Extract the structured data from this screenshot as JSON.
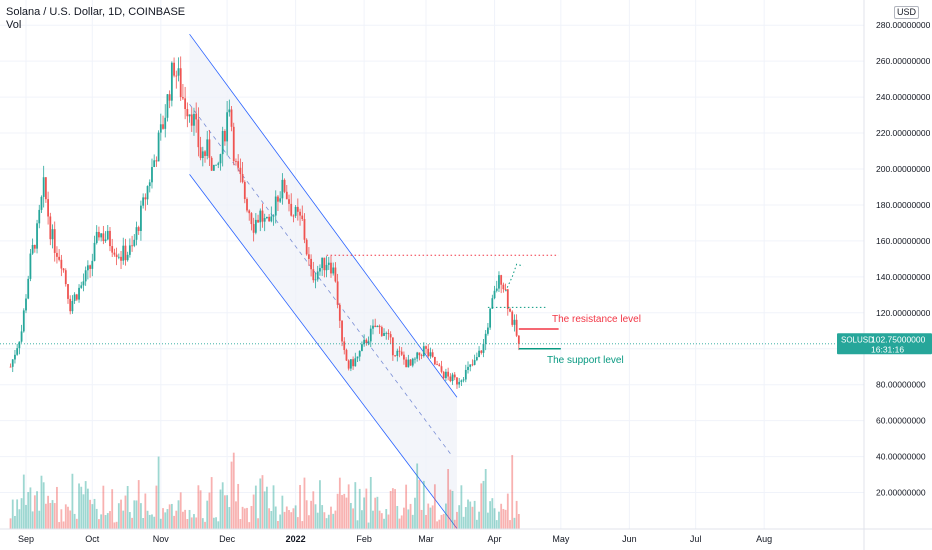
{
  "header": {
    "symbol_line": "Solana / U.S. Dollar, 1D, COINBASE",
    "volume_label": "Vol",
    "currency": "USD"
  },
  "price_tag": {
    "symbol": "SOLUSD",
    "price": "102.75000000",
    "countdown": "16:31:16"
  },
  "annotations": {
    "resistance": "The resistance level",
    "support": "The support level"
  },
  "colors": {
    "up": "#26a69a",
    "down": "#ef5350",
    "channel": "#2962ff",
    "resistance": "#f23645",
    "support": "#089981",
    "price_line": "#26a69a"
  },
  "chart_data": {
    "type": "candlestick",
    "title": "Solana / U.S. Dollar, 1D, COINBASE",
    "y_axis_ticks": [
      20,
      40,
      60,
      80,
      100,
      120,
      140,
      160,
      180,
      200,
      220,
      240,
      260,
      280
    ],
    "y_tick_labels": [
      "20.00000000",
      "40.00000000",
      "60.00000000",
      "80.00000000",
      "100.00000000",
      "120.00000000",
      "140.00000000",
      "160.00000000",
      "180.00000000",
      "200.00000000",
      "220.00000000",
      "240.00000000",
      "260.00000000",
      "280.00000000"
    ],
    "y_range": [
      0,
      290
    ],
    "x_range": [
      "2021-09-01",
      "2022-08-24"
    ],
    "x_ticks": [
      {
        "label": "Sep",
        "date": "2021-09-01"
      },
      {
        "label": "Oct",
        "date": "2021-10-01"
      },
      {
        "label": "Nov",
        "date": "2021-11-01"
      },
      {
        "label": "Dec",
        "date": "2021-12-01"
      },
      {
        "label": "2022",
        "date": "2022-01-01"
      },
      {
        "label": "Feb",
        "date": "2022-02-01"
      },
      {
        "label": "Mar",
        "date": "2022-03-01"
      },
      {
        "label": "Apr",
        "date": "2022-04-01"
      },
      {
        "label": "May",
        "date": "2022-05-01"
      },
      {
        "label": "Jun",
        "date": "2022-06-01"
      },
      {
        "label": "Jul",
        "date": "2022-07-01"
      },
      {
        "label": "Aug",
        "date": "2022-08-01"
      }
    ],
    "close_path": [
      [
        "2021-08-25",
        90
      ],
      [
        "2021-08-30",
        110
      ],
      [
        "2021-09-03",
        150
      ],
      [
        "2021-09-06",
        165
      ],
      [
        "2021-09-09",
        190
      ],
      [
        "2021-09-13",
        160
      ],
      [
        "2021-09-17",
        150
      ],
      [
        "2021-09-21",
        125
      ],
      [
        "2021-09-26",
        135
      ],
      [
        "2021-09-30",
        145
      ],
      [
        "2021-10-04",
        165
      ],
      [
        "2021-10-09",
        160
      ],
      [
        "2021-10-14",
        152
      ],
      [
        "2021-10-19",
        155
      ],
      [
        "2021-10-24",
        180
      ],
      [
        "2021-10-28",
        200
      ],
      [
        "2021-11-02",
        225
      ],
      [
        "2021-11-05",
        245
      ],
      [
        "2021-11-07",
        258
      ],
      [
        "2021-11-11",
        240
      ],
      [
        "2021-11-15",
        232
      ],
      [
        "2021-11-19",
        208
      ],
      [
        "2021-11-23",
        210
      ],
      [
        "2021-11-26",
        195
      ],
      [
        "2021-11-29",
        215
      ],
      [
        "2021-12-02",
        238
      ],
      [
        "2021-12-05",
        200
      ],
      [
        "2021-12-09",
        185
      ],
      [
        "2021-12-13",
        170
      ],
      [
        "2021-12-16",
        175
      ],
      [
        "2021-12-20",
        165
      ],
      [
        "2021-12-23",
        185
      ],
      [
        "2021-12-27",
        190
      ],
      [
        "2021-12-31",
        175
      ],
      [
        "2022-01-04",
        170
      ],
      [
        "2022-01-08",
        140
      ],
      [
        "2022-01-12",
        145
      ],
      [
        "2022-01-16",
        150
      ],
      [
        "2022-01-19",
        140
      ],
      [
        "2022-01-22",
        100
      ],
      [
        "2022-01-25",
        90
      ],
      [
        "2022-01-29",
        95
      ],
      [
        "2022-02-02",
        105
      ],
      [
        "2022-02-06",
        112
      ],
      [
        "2022-02-10",
        110
      ],
      [
        "2022-02-14",
        100
      ],
      [
        "2022-02-18",
        95
      ],
      [
        "2022-02-22",
        90
      ],
      [
        "2022-02-25",
        95
      ],
      [
        "2022-02-28",
        100
      ],
      [
        "2022-03-03",
        95
      ],
      [
        "2022-03-07",
        88
      ],
      [
        "2022-03-11",
        84
      ],
      [
        "2022-03-15",
        82
      ],
      [
        "2022-03-19",
        87
      ],
      [
        "2022-03-23",
        92
      ],
      [
        "2022-03-27",
        102
      ],
      [
        "2022-03-30",
        120
      ],
      [
        "2022-04-02",
        135
      ],
      [
        "2022-04-04",
        140
      ],
      [
        "2022-04-06",
        132
      ],
      [
        "2022-04-08",
        120
      ],
      [
        "2022-04-10",
        112
      ],
      [
        "2022-04-12",
        102.75
      ]
    ],
    "volume_ticks": [],
    "channel": {
      "upper": [
        [
          "2021-11-14",
          275
        ],
        [
          "2022-03-15",
          73
        ]
      ],
      "lower": [
        [
          "2021-11-14",
          197
        ],
        [
          "2022-03-15",
          0
        ]
      ],
      "mid": [
        [
          "2021-11-14",
          236
        ],
        [
          "2022-03-13",
          40
        ]
      ]
    },
    "levels": [
      {
        "name": "dotted-top",
        "price": 152,
        "from": "2022-01-15",
        "to": "2022-04-30"
      },
      {
        "name": "dotted-mid",
        "price": 123,
        "from": "2022-03-29",
        "to": "2022-04-24"
      },
      {
        "name": "resistance",
        "price": 111,
        "from": "2022-04-12",
        "to": "2022-04-30"
      },
      {
        "name": "support",
        "price": 100,
        "from": "2022-04-12",
        "to": "2022-05-01"
      }
    ],
    "projection": [
      [
        "2022-04-06",
        132
      ],
      [
        "2022-04-09",
        140
      ],
      [
        "2022-04-11",
        147
      ],
      [
        "2022-04-14",
        146
      ]
    ],
    "current_price": 102.75
  }
}
